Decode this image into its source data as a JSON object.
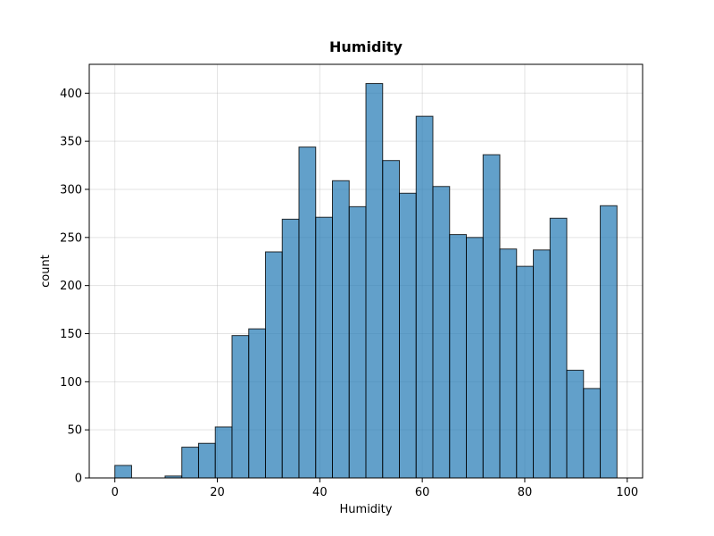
{
  "chart_data": {
    "type": "bar",
    "title": "Humidity",
    "xlabel": "Humidity",
    "ylabel": "count",
    "xlim": [
      -5,
      103
    ],
    "ylim": [
      0,
      430
    ],
    "xticks": [
      0,
      20,
      40,
      60,
      80,
      100
    ],
    "yticks": [
      0,
      50,
      100,
      150,
      200,
      250,
      300,
      350,
      400
    ],
    "grid": true,
    "bin_edges": [
      0,
      3.267,
      6.533,
      9.8,
      13.067,
      16.333,
      19.6,
      22.867,
      26.133,
      29.4,
      32.667,
      35.933,
      39.2,
      42.467,
      45.733,
      49,
      52.267,
      55.533,
      58.8,
      62.067,
      65.333,
      68.6,
      71.867,
      75.133,
      78.4,
      81.667,
      84.933,
      88.2,
      91.467,
      94.733,
      98
    ],
    "values": [
      13,
      0,
      0,
      2,
      32,
      36,
      53,
      148,
      155,
      235,
      269,
      344,
      271,
      309,
      282,
      410,
      330,
      296,
      376,
      303,
      253,
      250,
      336,
      238,
      220,
      237,
      270,
      112,
      93,
      283
    ]
  }
}
